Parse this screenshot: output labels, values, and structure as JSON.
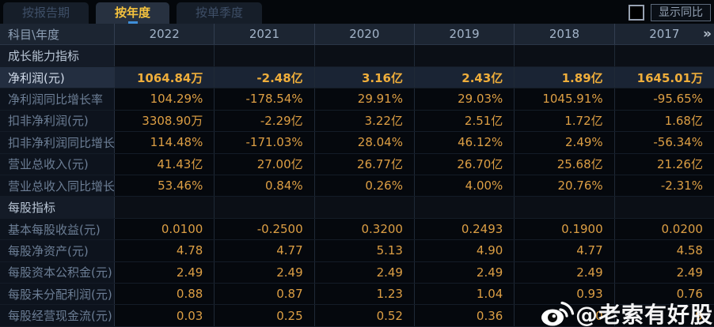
{
  "tabs": [
    {
      "label": "按报告期",
      "active": false
    },
    {
      "label": "按年度",
      "active": true
    },
    {
      "label": "按单季度",
      "active": false
    }
  ],
  "controls": {
    "show_yoy_label": "显示同比"
  },
  "table": {
    "corner_header": "科目\\年度",
    "year_columns": [
      "2022",
      "2021",
      "2020",
      "2019",
      "2018",
      "2017"
    ],
    "more_columns_icon": "»",
    "rows": [
      {
        "type": "section",
        "label": "成长能力指标",
        "values": [
          "",
          "",
          "",
          "",
          "",
          ""
        ],
        "highlight": false
      },
      {
        "type": "data",
        "label": "净利润(元)",
        "values": [
          "1064.84万",
          "-2.48亿",
          "3.16亿",
          "2.43亿",
          "1.89亿",
          "1645.01万"
        ],
        "highlight": true
      },
      {
        "type": "data",
        "label": "净利润同比增长率",
        "values": [
          "104.29%",
          "-178.54%",
          "29.91%",
          "29.03%",
          "1045.91%",
          "-95.65%"
        ],
        "highlight": false
      },
      {
        "type": "data",
        "label": "扣非净利润(元)",
        "values": [
          "3308.90万",
          "-2.29亿",
          "3.22亿",
          "2.51亿",
          "1.72亿",
          "1.68亿"
        ],
        "highlight": false
      },
      {
        "type": "data",
        "label": "扣非净利润同比增长率",
        "values": [
          "114.48%",
          "-171.03%",
          "28.04%",
          "46.12%",
          "2.49%",
          "-56.34%"
        ],
        "highlight": false
      },
      {
        "type": "data",
        "label": "营业总收入(元)",
        "values": [
          "41.43亿",
          "27.00亿",
          "26.77亿",
          "26.70亿",
          "25.68亿",
          "21.26亿"
        ],
        "highlight": false
      },
      {
        "type": "data",
        "label": "营业总收入同比增长率",
        "values": [
          "53.46%",
          "0.84%",
          "0.26%",
          "4.00%",
          "20.76%",
          "-2.31%"
        ],
        "highlight": false
      },
      {
        "type": "section",
        "label": "每股指标",
        "values": [
          "",
          "",
          "",
          "",
          "",
          ""
        ],
        "highlight": false
      },
      {
        "type": "data",
        "label": "基本每股收益(元)",
        "values": [
          "0.0100",
          "-0.2500",
          "0.3200",
          "0.2493",
          "0.1900",
          "0.0200"
        ],
        "highlight": false
      },
      {
        "type": "data",
        "label": "每股净资产(元)",
        "values": [
          "4.78",
          "4.77",
          "5.13",
          "4.90",
          "4.77",
          "4.58"
        ],
        "highlight": false
      },
      {
        "type": "data",
        "label": "每股资本公积金(元)",
        "values": [
          "2.49",
          "2.49",
          "2.49",
          "2.49",
          "2.49",
          "2.49"
        ],
        "highlight": false
      },
      {
        "type": "data",
        "label": "每股未分配利润(元)",
        "values": [
          "0.88",
          "0.87",
          "1.23",
          "1.04",
          "0.93",
          "0.76"
        ],
        "highlight": false
      },
      {
        "type": "data",
        "label": "每股经营现金流(元)",
        "values": [
          "0.03",
          "0.25",
          "0.52",
          "0.36",
          "0",
          "9"
        ],
        "highlight": false
      }
    ]
  },
  "watermark": {
    "text": "@老索有好股",
    "icon": "weibo-icon"
  },
  "colors": {
    "accent_gold": "#f6c33e",
    "value_orange": "#dd9f44",
    "highlight_value": "#efae3b",
    "tab_indicator_blue": "#3f8fd9",
    "header_bg": "#1c2532"
  }
}
